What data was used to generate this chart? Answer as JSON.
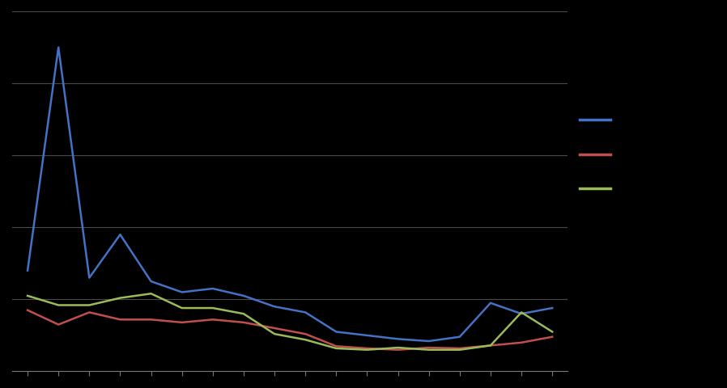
{
  "background_color": "#000000",
  "plot_bg_color": "#000000",
  "grid_color": "#4a4a4a",
  "line_blue": {
    "color": "#4472C4",
    "values": [
      1.4,
      4.5,
      1.3,
      1.9,
      1.25,
      1.1,
      1.15,
      1.05,
      0.9,
      0.82,
      0.55,
      0.5,
      0.45,
      0.42,
      0.48,
      0.95,
      0.8,
      0.88
    ]
  },
  "line_red": {
    "color": "#C0504D",
    "values": [
      0.85,
      0.65,
      0.82,
      0.72,
      0.72,
      0.68,
      0.72,
      0.68,
      0.6,
      0.52,
      0.35,
      0.32,
      0.3,
      0.33,
      0.32,
      0.36,
      0.4,
      0.48
    ]
  },
  "line_green": {
    "color": "#9BBB59",
    "values": [
      1.05,
      0.92,
      0.92,
      1.02,
      1.08,
      0.88,
      0.88,
      0.8,
      0.52,
      0.44,
      0.32,
      0.3,
      0.33,
      0.3,
      0.3,
      0.36,
      0.82,
      0.55
    ]
  },
  "n_points": 18,
  "ylim_max": 5.0,
  "yticks": [
    0,
    1.0,
    2.0,
    3.0,
    4.0,
    5.0
  ],
  "figsize": [
    8.98,
    4.81
  ],
  "dpi": 100
}
